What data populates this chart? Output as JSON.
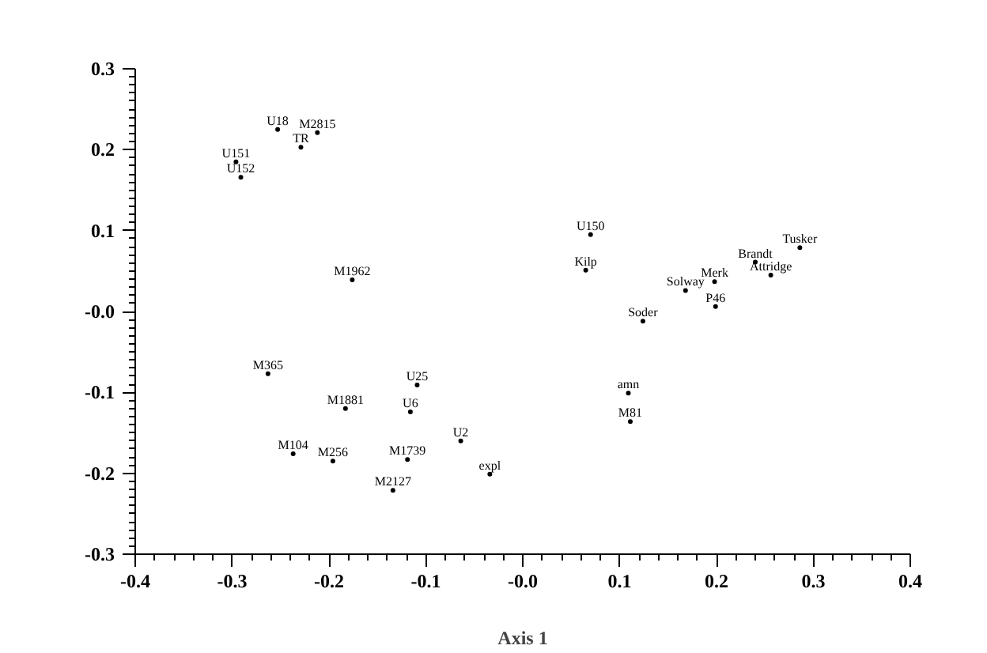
{
  "chart_data": {
    "type": "scatter",
    "xlabel": "Axis 1",
    "marker": "circle",
    "grid": false,
    "xlim": [
      -0.4,
      0.4
    ],
    "ylim": [
      -0.3,
      0.3
    ],
    "xticks": [
      -0.4,
      -0.3,
      -0.2,
      -0.1,
      {
        "value": 0,
        "label": "-0.0"
      },
      0.1,
      0.2,
      0.3,
      0.4
    ],
    "yticks": [
      -0.3,
      -0.2,
      -0.1,
      {
        "value": 0,
        "label": "-0.0"
      },
      0.1,
      0.2,
      0.3
    ],
    "x": [
      -0.253,
      -0.212,
      -0.229,
      -0.296,
      -0.291,
      0.07,
      0.065,
      0.286,
      0.24,
      0.256,
      0.198,
      0.168,
      0.199,
      0.124,
      0.109,
      0.111,
      -0.176,
      -0.263,
      -0.109,
      -0.183,
      -0.116,
      -0.064,
      -0.237,
      -0.196,
      -0.119,
      -0.034,
      -0.134
    ],
    "values": [
      0.225,
      0.221,
      0.203,
      0.185,
      0.166,
      0.095,
      0.051,
      0.079,
      0.061,
      0.045,
      0.037,
      0.026,
      0.006,
      -0.012,
      -0.101,
      -0.136,
      0.039,
      -0.077,
      -0.091,
      -0.12,
      -0.124,
      -0.16,
      -0.176,
      -0.185,
      -0.183,
      -0.201,
      -0.221
    ],
    "value_labels": [
      "U18",
      "M2815",
      "TR",
      "U151",
      "U152",
      "U150",
      "Kilp",
      "Tusker",
      "Brandt",
      "Attridge",
      "Merk",
      "Solway",
      "P46",
      "Soder",
      "amn",
      "M81",
      "M1962",
      "M365",
      "U25",
      "M1881",
      "U6",
      "U2",
      "M104",
      "M256",
      "M1739",
      "expl",
      "M2127"
    ]
  }
}
